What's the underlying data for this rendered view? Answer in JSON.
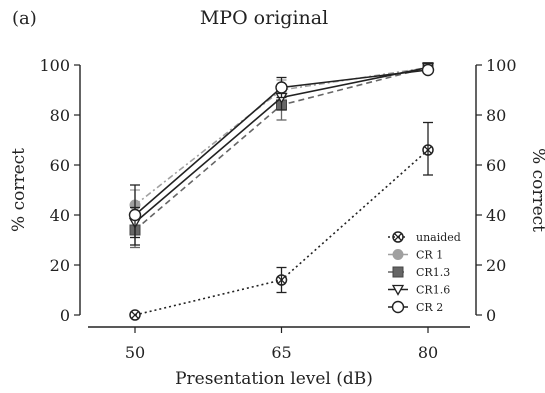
{
  "panel_label": "(a)",
  "chart_data": {
    "type": "line",
    "title": "MPO original",
    "xlabel": "Presentation level (dB)",
    "ylabel": "% correct",
    "y2label": "% correct",
    "categories": [
      "50",
      "65",
      "80"
    ],
    "x": [
      50,
      65,
      80
    ],
    "ylim": [
      0,
      100
    ],
    "yticks": [
      0,
      20,
      40,
      60,
      80,
      100
    ],
    "grid": false,
    "legend_position": "bottom-right",
    "series": [
      {
        "name": "unaided",
        "values": [
          0,
          14,
          66
        ],
        "err_low": [
          0,
          9,
          56
        ],
        "err_high": [
          0,
          19,
          77
        ],
        "marker": "circle-cross",
        "line": "dotted",
        "color": "#222222"
      },
      {
        "name": "CR 1",
        "values": [
          44,
          90,
          99
        ],
        "err_low": [
          38,
          86,
          98
        ],
        "err_high": [
          50,
          94,
          100
        ],
        "marker": "circle",
        "line": "dashdot",
        "color": "#a0a0a0"
      },
      {
        "name": "CR1.3",
        "values": [
          34,
          84,
          99
        ],
        "err_low": [
          27,
          78,
          98
        ],
        "err_high": [
          41,
          90,
          100
        ],
        "marker": "square",
        "line": "dashed",
        "color": "#666666"
      },
      {
        "name": "CR1.6",
        "values": [
          37,
          87,
          99
        ],
        "err_low": [
          31,
          82,
          98
        ],
        "err_high": [
          43,
          92,
          100
        ],
        "marker": "triangle-down",
        "line": "solid",
        "color": "#222222"
      },
      {
        "name": "CR 2",
        "values": [
          40,
          91,
          98
        ],
        "err_low": [
          28,
          87,
          97
        ],
        "err_high": [
          52,
          95,
          99
        ],
        "marker": "circle-open",
        "line": "solid",
        "color": "#222222"
      }
    ]
  }
}
